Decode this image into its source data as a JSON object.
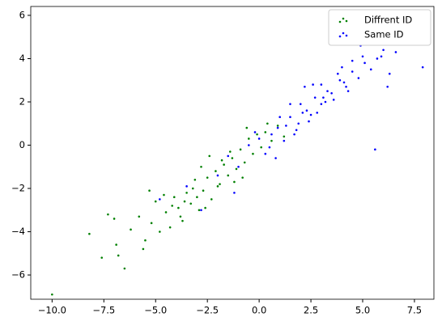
{
  "chart_data": {
    "type": "scatter",
    "series": [
      {
        "name": "Diffrent ID",
        "color": "#008000",
        "x": [
          -10,
          -8.2,
          -7.6,
          -7.3,
          -6.9,
          -6.5,
          -6.2,
          -5.8,
          -5.5,
          -5.2,
          -5,
          -4.8,
          -4.5,
          -4.3,
          -4.1,
          -3.9,
          -3.7,
          -3.5,
          -3.3,
          -3.1,
          -2.9,
          -2.7,
          -2.5,
          -2.3,
          -2.1,
          -1.9,
          -1.7,
          -1.5,
          -1.3,
          -1.1,
          -0.9,
          -0.7,
          -0.5,
          -0.3,
          -0.1,
          0.1,
          0.3,
          0.6,
          0.9,
          1.2,
          -4.6,
          -3.8,
          -3.2,
          -2.6,
          -2,
          -1.4,
          -0.8,
          -5.6,
          -6.8,
          -4.2,
          -3,
          -1.8,
          -0.6,
          0.4,
          -2.8,
          -3.6,
          -5.3,
          -7,
          -1.2,
          -2.4
        ],
        "values": [
          -6.9,
          -4.1,
          -5.2,
          -3.2,
          -4.6,
          -5.7,
          -3.9,
          -3.3,
          -4.4,
          -3.6,
          -2.6,
          -4,
          -3.1,
          -3.8,
          -2.4,
          -2.9,
          -3.5,
          -2.2,
          -2.7,
          -1.6,
          -3,
          -2.1,
          -1.5,
          -2.5,
          -1.2,
          -1.8,
          -0.9,
          -1.4,
          -0.6,
          -1.1,
          -0.2,
          -0.8,
          0.3,
          -0.4,
          0.5,
          -0.1,
          0.6,
          0.2,
          0.9,
          0.4,
          -2.3,
          -3.3,
          -2,
          -2.9,
          -1.9,
          -0.3,
          -1.5,
          -4.8,
          -5.1,
          -2.8,
          -2.4,
          -0.7,
          0.8,
          1,
          -1,
          -2.6,
          -2.1,
          -3.4,
          -1.7,
          -0.5
        ]
      },
      {
        "name": "Same ID",
        "color": "#0000ff",
        "x": [
          -4.8,
          -3.5,
          -2.8,
          -2,
          -1.5,
          -1,
          -0.5,
          0,
          0.3,
          0.6,
          0.9,
          1.2,
          1.5,
          1.8,
          2.1,
          2.4,
          2.7,
          3,
          3.3,
          3.6,
          3.9,
          4.2,
          4.5,
          4.8,
          5.1,
          5.4,
          5.7,
          6,
          6.3,
          6.6,
          7.9,
          5.6,
          1,
          2,
          3,
          4,
          5,
          0.5,
          1.5,
          2.5,
          3.5,
          4.5,
          2.2,
          2.8,
          3.2,
          3.8,
          4.3,
          1.3,
          1.7,
          2.6,
          -1.2,
          -0.2,
          0.8,
          2.3,
          3.1,
          4.1,
          4.9,
          5.9,
          1.9,
          6.2
        ],
        "values": [
          -2.5,
          -1.9,
          -3,
          -1.4,
          -0.5,
          -1,
          0,
          0.3,
          -0.4,
          0.5,
          0.8,
          0.2,
          1.3,
          0.7,
          1.5,
          1.1,
          2.2,
          1.9,
          2.5,
          2.1,
          3,
          2.7,
          3.4,
          3.1,
          3.8,
          3.5,
          4,
          4.4,
          3.3,
          4.3,
          3.6,
          -0.2,
          1.3,
          1.9,
          2.8,
          3.6,
          4.1,
          -0.1,
          1.9,
          1.4,
          2.4,
          3.9,
          2.7,
          1.5,
          2,
          3.3,
          2.5,
          0.9,
          0.5,
          2.8,
          -2.2,
          0.6,
          -0.6,
          1.6,
          2.2,
          2.9,
          4.6,
          4.1,
          1,
          2.7
        ]
      }
    ],
    "xlim": [
      -11.03,
      8.44
    ],
    "ylim": [
      -7.12,
      6.41
    ],
    "xticks": [
      {
        "value": -10,
        "label": "−10.0"
      },
      {
        "value": -7.5,
        "label": "−7.5"
      },
      {
        "value": -5,
        "label": "−5.0"
      },
      {
        "value": -2.5,
        "label": "−2.5"
      },
      {
        "value": 0,
        "label": "0.0"
      },
      {
        "value": 2.5,
        "label": "2.5"
      },
      {
        "value": 5,
        "label": "5.0"
      },
      {
        "value": 7.5,
        "label": "7.5"
      }
    ],
    "yticks": [
      {
        "value": -6,
        "label": "−6"
      },
      {
        "value": -4,
        "label": "−4"
      },
      {
        "value": -2,
        "label": "−2"
      },
      0,
      2,
      4,
      6
    ],
    "legend": "upper right"
  }
}
